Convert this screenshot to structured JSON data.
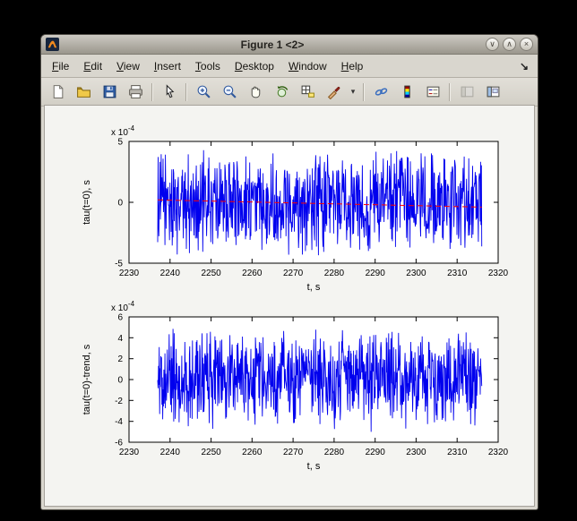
{
  "window": {
    "title": "Figure 1 <2>",
    "controls": {
      "minimize": "∨",
      "maximize": "∧",
      "close": "×"
    }
  },
  "menu_bar": {
    "items": [
      "File",
      "Edit",
      "View",
      "Insert",
      "Tools",
      "Desktop",
      "Window",
      "Help"
    ],
    "dock_icon": "↘"
  },
  "toolbar": {
    "items": [
      "new-figure",
      "open-file",
      "save-figure",
      "print-figure",
      "edit-plot",
      "zoom-in",
      "zoom-out",
      "pan",
      "rotate-3d",
      "data-cursor",
      "brush",
      "brush-dropdown",
      "link-plot",
      "insert-colorbar",
      "insert-legend",
      "hide-plot-tools",
      "show-plot-tools"
    ],
    "brush_dropdown_glyph": "▾"
  },
  "chart_data": [
    {
      "type": "line",
      "title": "",
      "xlabel": "t, s",
      "ylabel": "tau(t=0), s",
      "xlim": [
        2230,
        2320
      ],
      "ylim": [
        -5,
        5
      ],
      "y_scale": "1e-4",
      "exponent_label": {
        "base": "x 10",
        "exp": "-4"
      },
      "xticks": [
        2230,
        2240,
        2250,
        2260,
        2270,
        2280,
        2290,
        2300,
        2310,
        2320
      ],
      "yticks": [
        -5,
        0,
        5
      ],
      "grid": false,
      "legend_position": "none",
      "series": [
        {
          "name": "tau(t=0)",
          "kind": "noise",
          "color": "#0000ee",
          "x_start": 2237,
          "x_end": 2316,
          "n_points": 850,
          "amplitude": 4.7,
          "seed": 1234
        },
        {
          "name": "trend",
          "kind": "segment",
          "color": "#ff0000",
          "dash": true,
          "x": [
            2237,
            2316
          ],
          "y": [
            0.2,
            -0.4
          ]
        }
      ]
    },
    {
      "type": "line",
      "title": "",
      "xlabel": "t, s",
      "ylabel": "tau(t=0)-trend, s",
      "xlim": [
        2230,
        2320
      ],
      "ylim": [
        -6,
        6
      ],
      "y_scale": "1e-4",
      "exponent_label": {
        "base": "x 10",
        "exp": "-4"
      },
      "xticks": [
        2230,
        2240,
        2250,
        2260,
        2270,
        2280,
        2290,
        2300,
        2310,
        2320
      ],
      "yticks": [
        -6,
        -4,
        -2,
        0,
        2,
        4,
        6
      ],
      "grid": false,
      "legend_position": "none",
      "series": [
        {
          "name": "tau(t=0)-trend",
          "kind": "noise",
          "color": "#0000ee",
          "x_start": 2237,
          "x_end": 2316,
          "n_points": 850,
          "amplitude": 5.3,
          "seed": 5678
        }
      ]
    }
  ]
}
